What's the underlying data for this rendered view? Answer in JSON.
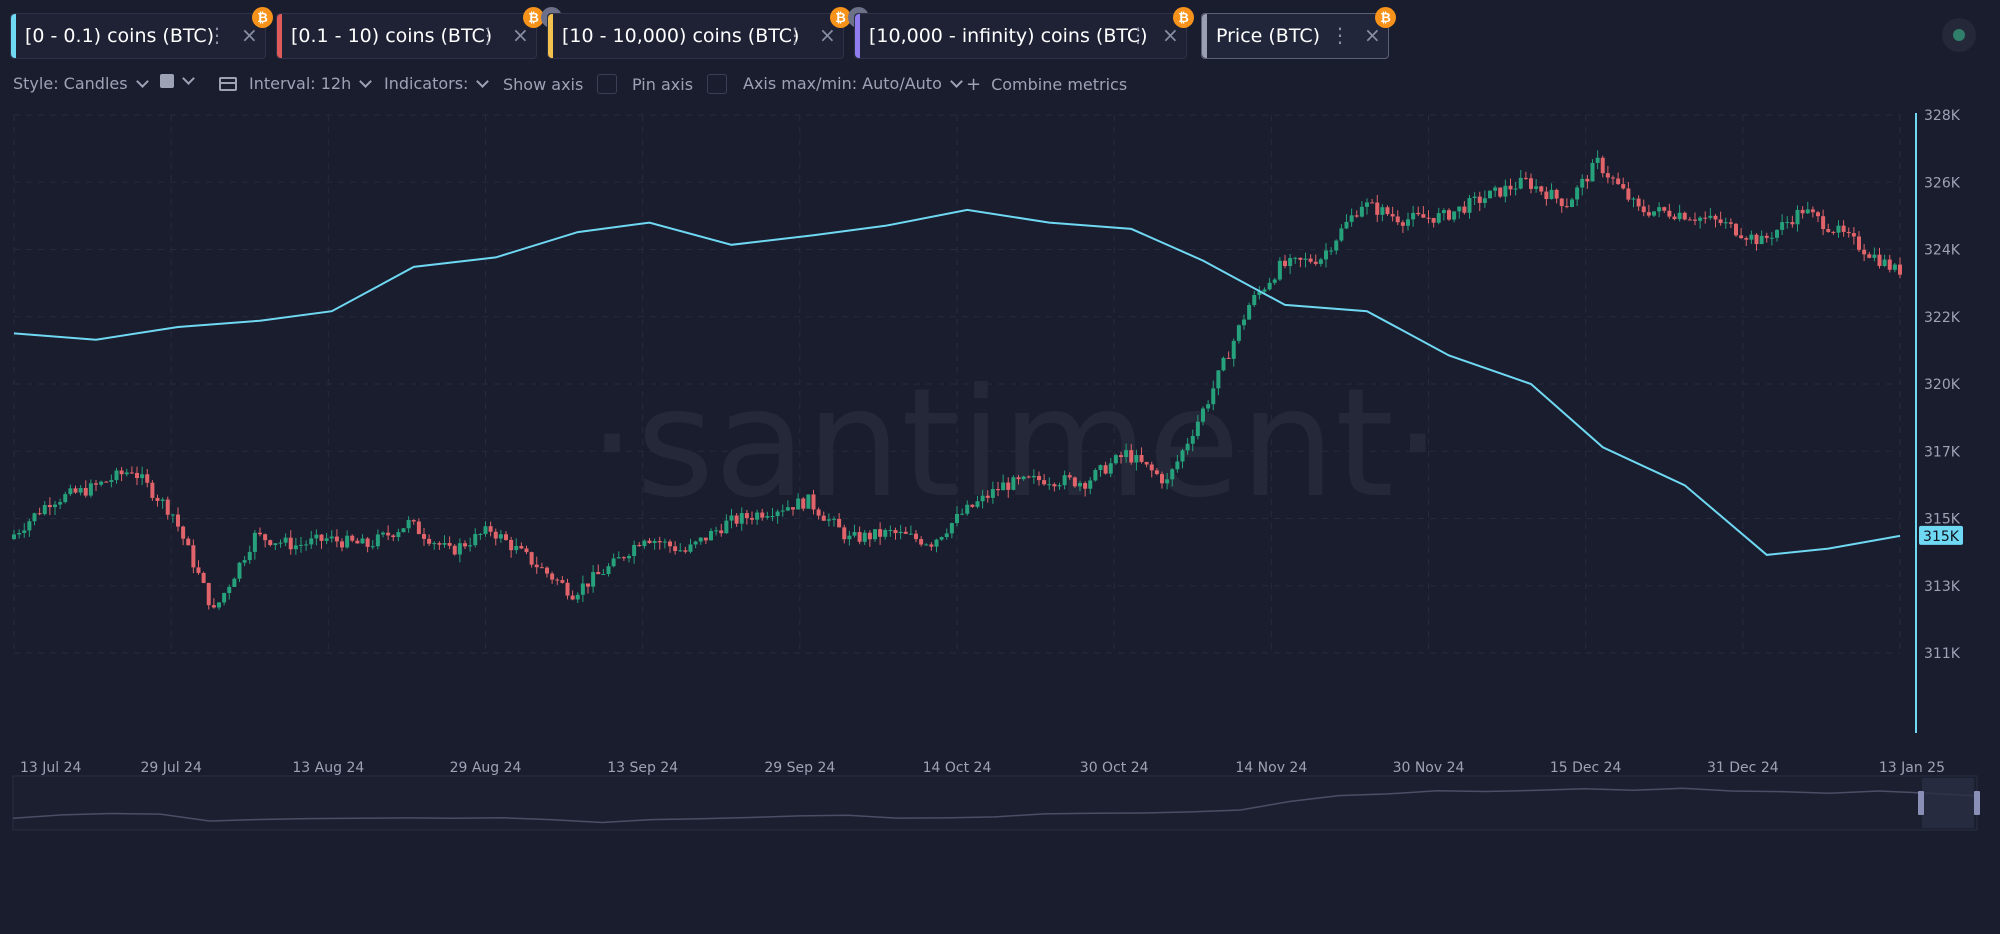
{
  "metrics": [
    {
      "label": "[0 - 0.1) coins (BTC)",
      "color": "#6fd8f2",
      "hidden": false,
      "active": false
    },
    {
      "label": "[0.1 - 10) coins (BTC)",
      "color": "#e05a5a",
      "hidden": true,
      "active": false
    },
    {
      "label": "[10 - 10,000) coins (BTC)",
      "color": "#f2c14e",
      "hidden": true,
      "active": false
    },
    {
      "label": "[10,000 - infinity) coins (BTC)",
      "color": "#8f7cf0",
      "hidden": false,
      "active": false
    },
    {
      "label": "Price (BTC)",
      "color": "#9aa0b2",
      "hidden": false,
      "active": true
    }
  ],
  "icons": {
    "menu": "dots-vertical-icon",
    "close": "close-icon",
    "asset": "bitcoin-icon",
    "hidden": "eye-off-icon",
    "status": "status-dot-icon"
  },
  "badge_symbol": "₿",
  "toolbar": {
    "style": "Style: Candles",
    "interval": "Interval: 12h",
    "indicators": "Indicators:",
    "show_axis": "Show axis",
    "pin_axis": "Pin axis",
    "axis_maxmin": "Axis max/min: Auto/Auto",
    "combine": "Combine metrics"
  },
  "watermark": "·santiment·",
  "chart_data": {
    "type": "line",
    "x_ticks": [
      "13 Jul 24",
      "29 Jul 24",
      "13 Aug 24",
      "29 Aug 24",
      "13 Sep 24",
      "29 Sep 24",
      "14 Oct 24",
      "30 Oct 24",
      "14 Nov 24",
      "30 Nov 24",
      "15 Dec 24",
      "31 Dec 24",
      "13 Jan 25"
    ],
    "y_ticks": [
      "311K",
      "313K",
      "315K",
      "317K",
      "320K",
      "322K",
      "324K",
      "326K",
      "328K"
    ],
    "ylim": [
      311000,
      328000
    ],
    "current_value_label": "315K",
    "colors": {
      "up": "#26a17b",
      "down": "#e0646a",
      "line": "#6fd8f2",
      "grid": "#262a3d"
    },
    "series": [
      {
        "type": "line",
        "color": "#6fd8f2",
        "x": [
          "2024-07-13",
          "2024-07-21",
          "2024-07-29",
          "2024-08-06",
          "2024-08-13",
          "2024-08-21",
          "2024-08-29",
          "2024-09-06",
          "2024-09-13",
          "2024-09-21",
          "2024-09-29",
          "2024-10-06",
          "2024-10-14",
          "2024-10-22",
          "2024-10-30",
          "2024-11-06",
          "2024-11-14",
          "2024-11-22",
          "2024-11-30",
          "2024-12-08",
          "2024-12-15",
          "2024-12-23",
          "2024-12-31",
          "2025-01-06",
          "2025-01-13"
        ],
        "values": [
          321100,
          320900,
          321300,
          321500,
          321800,
          323200,
          323500,
          324300,
          324600,
          323900,
          324200,
          324500,
          325000,
          324600,
          324400,
          323400,
          322000,
          321800,
          320400,
          319500,
          317500,
          316300,
          314100,
          314300,
          314700
        ]
      },
      {
        "type": "candlestick",
        "x": [
          "2024-07-13",
          "2024-07-17",
          "2024-07-21",
          "2024-07-25",
          "2024-07-29",
          "2024-08-02",
          "2024-08-06",
          "2024-08-10",
          "2024-08-13",
          "2024-08-17",
          "2024-08-21",
          "2024-08-25",
          "2024-08-29",
          "2024-09-02",
          "2024-09-06",
          "2024-09-10",
          "2024-09-13",
          "2024-09-17",
          "2024-09-21",
          "2024-09-25",
          "2024-09-29",
          "2024-10-03",
          "2024-10-07",
          "2024-10-11",
          "2024-10-14",
          "2024-10-18",
          "2024-10-22",
          "2024-10-26",
          "2024-10-30",
          "2024-11-03",
          "2024-11-07",
          "2024-11-11",
          "2024-11-14",
          "2024-11-18",
          "2024-11-22",
          "2024-11-26",
          "2024-11-30",
          "2024-12-04",
          "2024-12-08",
          "2024-12-12",
          "2024-12-15",
          "2024-12-19",
          "2024-12-23",
          "2024-12-27",
          "2024-12-31",
          "2025-01-04",
          "2025-01-08",
          "2025-01-13"
        ],
        "values": [
          314600,
          315800,
          316200,
          316800,
          315400,
          312300,
          314700,
          314400,
          314600,
          314400,
          315100,
          314200,
          314900,
          313900,
          312900,
          313800,
          314700,
          314200,
          315100,
          315500,
          315800,
          314600,
          314800,
          314500,
          315400,
          316300,
          316500,
          316400,
          317300,
          316400,
          319000,
          322000,
          323200,
          323500,
          325200,
          324700,
          324800,
          325400,
          325900,
          325200,
          326500,
          325000,
          324900,
          324600,
          324000,
          325000,
          324200,
          323100
        ]
      }
    ]
  }
}
